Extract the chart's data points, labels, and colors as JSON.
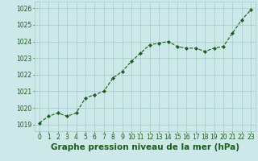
{
  "x": [
    0,
    1,
    2,
    3,
    4,
    5,
    6,
    7,
    8,
    9,
    10,
    11,
    12,
    13,
    14,
    15,
    16,
    17,
    18,
    19,
    20,
    21,
    22,
    23
  ],
  "y": [
    1019.1,
    1019.5,
    1019.7,
    1019.5,
    1019.7,
    1020.6,
    1020.8,
    1021.0,
    1021.8,
    1022.2,
    1022.8,
    1023.3,
    1023.8,
    1023.9,
    1024.0,
    1023.7,
    1023.6,
    1023.6,
    1023.4,
    1023.6,
    1023.7,
    1024.5,
    1025.3,
    1025.9
  ],
  "line_color": "#1a5c1a",
  "marker": "D",
  "marker_size": 2.2,
  "bg_color": "#cce8e8",
  "grid_color": "#aacece",
  "xlabel": "Graphe pression niveau de la mer (hPa)",
  "xlabel_fontsize": 7.5,
  "xlabel_color": "#1a5c1a",
  "ytick_labels": [
    "1019",
    "1020",
    "1021",
    "1022",
    "1023",
    "1024",
    "1025",
    "1026"
  ],
  "ytick_values": [
    1019,
    1020,
    1021,
    1022,
    1023,
    1024,
    1025,
    1026
  ],
  "ylim": [
    1018.6,
    1026.4
  ],
  "xlim": [
    -0.5,
    23.5
  ],
  "tick_fontsize": 5.5,
  "tick_color": "#1a5c1a",
  "linewidth": 0.8
}
